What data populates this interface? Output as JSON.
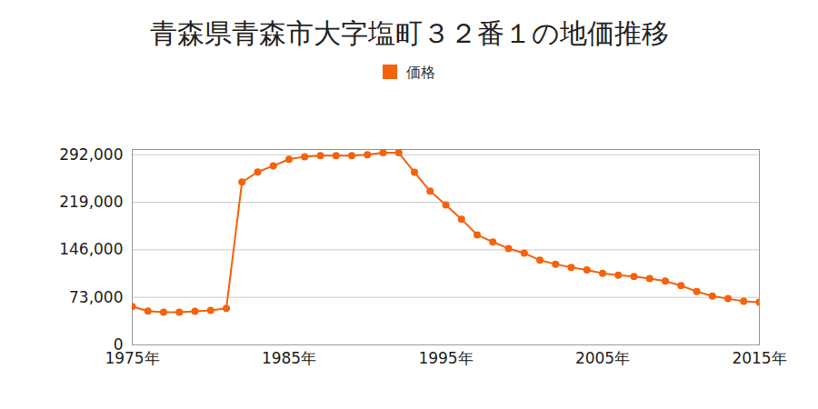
{
  "chart_data": {
    "type": "line",
    "title": "青森県青森市大字塩町３２番１の地価推移",
    "x": [
      1975,
      1976,
      1977,
      1978,
      1979,
      1980,
      1981,
      1982,
      1983,
      1984,
      1985,
      1986,
      1987,
      1988,
      1989,
      1990,
      1991,
      1992,
      1993,
      1994,
      1995,
      1996,
      1997,
      1998,
      1999,
      2000,
      2001,
      2002,
      2003,
      2004,
      2005,
      2006,
      2007,
      2008,
      2009,
      2010,
      2011,
      2012,
      2013,
      2014,
      2015
    ],
    "series": [
      {
        "name": "価格",
        "color": "#f4620e",
        "marker": "circle",
        "line_style": "solid",
        "values": [
          59000,
          52000,
          50300,
          50300,
          51700,
          53000,
          56000,
          250000,
          265500,
          275000,
          285000,
          289000,
          290500,
          290500,
          290500,
          292000,
          295000,
          295000,
          265000,
          236000,
          215000,
          193000,
          169000,
          158000,
          148000,
          141000,
          130000,
          124000,
          119000,
          115000,
          110000,
          107000,
          105000,
          102000,
          98000,
          91000,
          82000,
          75000,
          71000,
          67000,
          65500
        ]
      }
    ],
    "xlim": [
      1975,
      2015
    ],
    "xticks": [
      {
        "value": 1975,
        "label": "1975年"
      },
      {
        "value": 1985,
        "label": "1985年"
      },
      {
        "value": 1995,
        "label": "1995年"
      },
      {
        "value": 2005,
        "label": "2005年"
      },
      {
        "value": 2015,
        "label": "2015年"
      }
    ],
    "ylim": [
      0,
      300000
    ],
    "yticks": [
      0,
      {
        "value": 73000,
        "label": "73,000"
      },
      {
        "value": 146000,
        "label": "146,000"
      },
      {
        "value": 219000,
        "label": "219,000"
      },
      {
        "value": 292000,
        "label": "292,000"
      }
    ],
    "grid": true,
    "legend": "top"
  }
}
